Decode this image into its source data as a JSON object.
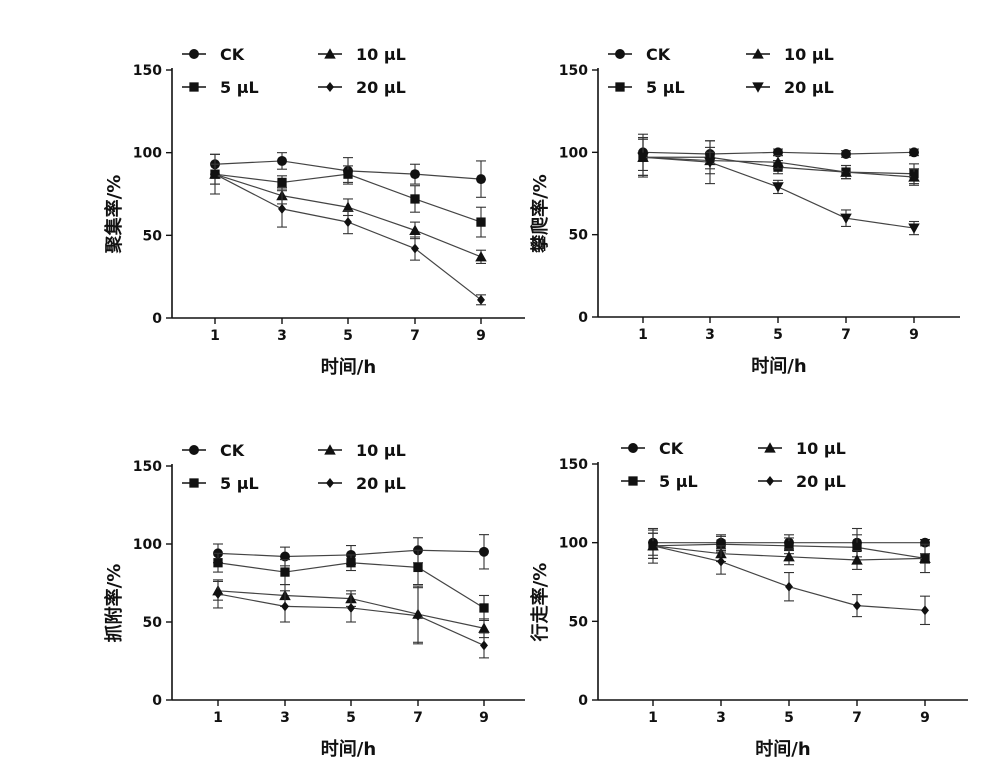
{
  "chart_data": [
    {
      "type": "line",
      "title": "",
      "xlabel": "时间/h",
      "ylabel": "聚集率/%",
      "x": [
        1,
        3,
        5,
        7,
        9
      ],
      "xticks": [
        "1",
        "3",
        "5",
        "7",
        "9"
      ],
      "ylim": [
        0,
        150
      ],
      "yticks": [
        0,
        50,
        100,
        150
      ],
      "legend_position": "top",
      "series": [
        {
          "name": "CK",
          "marker": "circle",
          "values": [
            93,
            95,
            89,
            87,
            84
          ],
          "errors": [
            6,
            5,
            8,
            6,
            11
          ]
        },
        {
          "name": "5 μL",
          "marker": "square",
          "values": [
            87,
            82,
            87,
            72,
            58
          ],
          "errors": [
            6,
            4,
            5,
            8,
            9
          ]
        },
        {
          "name": "10 μL",
          "marker": "triangle-up",
          "values": [
            87,
            74,
            67,
            53,
            37
          ],
          "errors": [
            6,
            5,
            5,
            5,
            4
          ]
        },
        {
          "name": "20 μL",
          "marker": "diamond",
          "values": [
            87,
            66,
            58,
            42,
            11
          ],
          "errors": [
            12,
            11,
            7,
            7,
            3
          ]
        }
      ]
    },
    {
      "type": "line",
      "title": "",
      "xlabel": "时间/h",
      "ylabel": "攀爬率/%",
      "x": [
        1,
        3,
        5,
        7,
        9
      ],
      "xticks": [
        "1",
        "3",
        "5",
        "7",
        "9"
      ],
      "ylim": [
        0,
        150
      ],
      "yticks": [
        0,
        50,
        100,
        150
      ],
      "legend_position": "top",
      "series": [
        {
          "name": "CK",
          "marker": "circle",
          "values": [
            100,
            99,
            100,
            99,
            100
          ],
          "errors": [
            11,
            4,
            2,
            2,
            2
          ]
        },
        {
          "name": "5 μL",
          "marker": "square",
          "values": [
            97,
            97,
            91,
            88,
            87
          ],
          "errors": [
            11,
            10,
            4,
            4,
            6
          ]
        },
        {
          "name": "10 μL",
          "marker": "triangle-up",
          "values": [
            97,
            95,
            94,
            88,
            85
          ],
          "errors": [
            11,
            5,
            4,
            4,
            5
          ]
        },
        {
          "name": "20 μL",
          "marker": "triangle-down",
          "values": [
            97,
            94,
            79,
            60,
            54
          ],
          "errors": [
            12,
            13,
            4,
            5,
            4
          ]
        }
      ]
    },
    {
      "type": "line",
      "title": "",
      "xlabel": "时间/h",
      "ylabel": "抓附率/%",
      "x": [
        1,
        3,
        5,
        7,
        9
      ],
      "xticks": [
        "1",
        "3",
        "5",
        "7",
        "9"
      ],
      "ylim": [
        0,
        150
      ],
      "yticks": [
        0,
        50,
        100,
        150
      ],
      "legend_position": "top",
      "series": [
        {
          "name": "CK",
          "marker": "circle",
          "values": [
            94,
            92,
            93,
            96,
            95
          ],
          "errors": [
            6,
            6,
            6,
            8,
            11
          ]
        },
        {
          "name": "5 μL",
          "marker": "square",
          "values": [
            88,
            82,
            88,
            85,
            59
          ],
          "errors": [
            6,
            8,
            5,
            11,
            8
          ]
        },
        {
          "name": "10 μL",
          "marker": "triangle-up",
          "values": [
            70,
            67,
            65,
            55,
            46
          ],
          "errors": [
            6,
            7,
            5,
            18,
            6
          ]
        },
        {
          "name": "20 μL",
          "marker": "diamond",
          "values": [
            68,
            60,
            59,
            54,
            35
          ],
          "errors": [
            9,
            10,
            9,
            18,
            8
          ]
        }
      ]
    },
    {
      "type": "line",
      "title": "",
      "xlabel": "时间/h",
      "ylabel": "行走率/%",
      "x": [
        1,
        3,
        5,
        7,
        9
      ],
      "xticks": [
        "1",
        "3",
        "5",
        "7",
        "9"
      ],
      "ylim": [
        0,
        150
      ],
      "yticks": [
        0,
        50,
        100,
        150
      ],
      "legend_position": "top",
      "series": [
        {
          "name": "CK",
          "marker": "circle",
          "values": [
            100,
            100,
            100,
            100,
            100
          ],
          "errors": [
            8,
            5,
            5,
            9,
            2
          ]
        },
        {
          "name": "5 μL",
          "marker": "square",
          "values": [
            98,
            99,
            98,
            97,
            90
          ],
          "errors": [
            8,
            5,
            5,
            8,
            9
          ]
        },
        {
          "name": "10 μL",
          "marker": "triangle-up",
          "values": [
            98,
            93,
            91,
            89,
            90
          ],
          "errors": [
            8,
            5,
            5,
            6,
            3
          ]
        },
        {
          "name": "20 μL",
          "marker": "diamond",
          "values": [
            98,
            88,
            72,
            60,
            57
          ],
          "errors": [
            11,
            8,
            9,
            7,
            9
          ]
        }
      ]
    }
  ]
}
